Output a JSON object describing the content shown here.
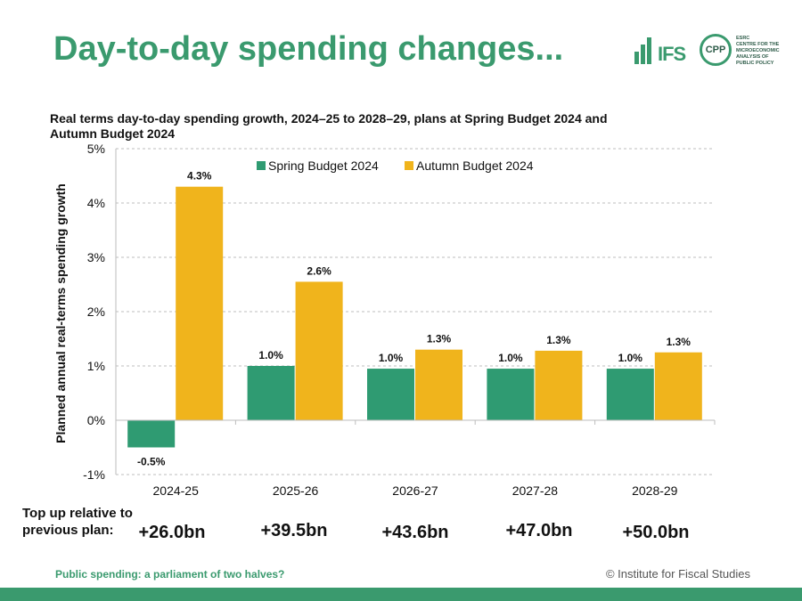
{
  "slide": {
    "title": "Day-to-day spending changes...",
    "logo_ifs": "IFS",
    "logo_cpp": "CPP",
    "logo_cpp_text": [
      "ESRC",
      "CENTRE FOR THE",
      "MICROECONOMIC",
      "ANALYSIS OF",
      "PUBLIC POLICY"
    ],
    "topup_label": "Top up relative to previous plan:",
    "topup_values": [
      "+26.0bn",
      "+39.5bn",
      "+43.6bn",
      "+47.0bn",
      "+50.0bn"
    ],
    "footer_left": "Public spending: a parliament of two halves?",
    "footer_right": "© Institute for Fiscal Studies"
  },
  "colors": {
    "green": "#2f9b72",
    "yellow": "#f0b41c",
    "title_green": "#3a9a6e"
  },
  "chart_data": {
    "type": "bar",
    "title": "Real terms day-to-day spending growth, 2024–25 to 2028–29, plans at Spring Budget 2024 and Autumn Budget 2024",
    "xlabel": "",
    "ylabel": "Planned annual real-terms spending growth",
    "categories": [
      "2024-25",
      "2025-26",
      "2026-27",
      "2027-28",
      "2028-29"
    ],
    "series": [
      {
        "name": "Spring Budget 2024",
        "values": [
          -0.5,
          1.0,
          0.95,
          0.95,
          0.95
        ],
        "labels": [
          "-0.5%",
          "1.0%",
          "1.0%",
          "1.0%",
          "1.0%"
        ],
        "color": "#2f9b72"
      },
      {
        "name": "Autumn Budget 2024",
        "values": [
          4.3,
          2.55,
          1.3,
          1.28,
          1.25
        ],
        "labels": [
          "4.3%",
          "2.6%",
          "1.3%",
          "1.3%",
          "1.3%"
        ],
        "color": "#f0b41c"
      }
    ],
    "ylim": [
      -1,
      5
    ],
    "yticks": [
      -1,
      0,
      1,
      2,
      3,
      4,
      5
    ],
    "ytick_labels": [
      "-1%",
      "0%",
      "1%",
      "2%",
      "3%",
      "4%",
      "5%"
    ],
    "grid": true,
    "legend": "top"
  }
}
